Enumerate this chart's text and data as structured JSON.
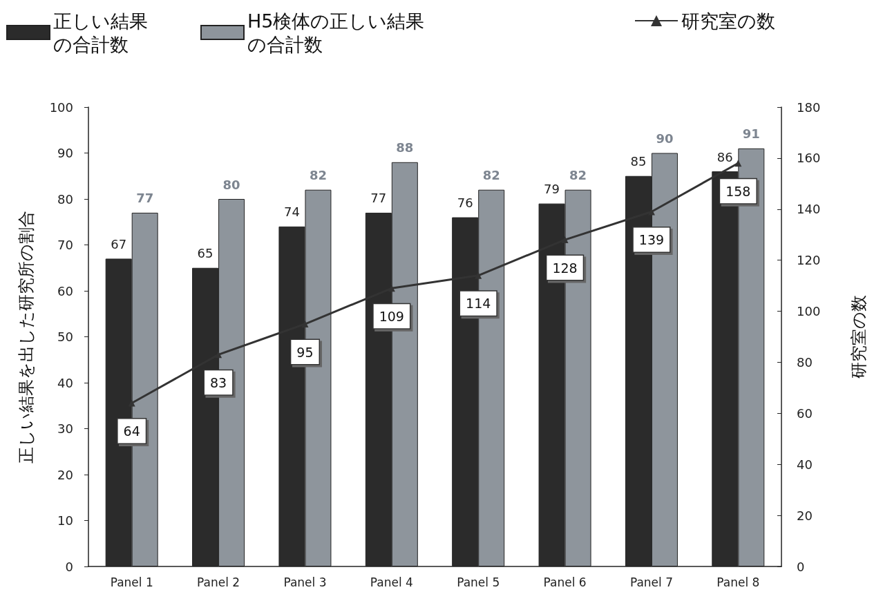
{
  "chart_data": {
    "type": "bar",
    "ylabel": "正しい結果を出した研究所の割合",
    "y2label": "研究室の数",
    "categories": [
      "Panel 1",
      "Panel 2",
      "Panel 3",
      "Panel 4",
      "Panel 5",
      "Panel 6",
      "Panel 7",
      "Panel 8"
    ],
    "series": [
      {
        "name": "正しい結果の合計数",
        "color": "#2b2b2b",
        "values": [
          67,
          65,
          74,
          77,
          76,
          79,
          85,
          86
        ]
      },
      {
        "name": "H5検体の正しい結果の合計数",
        "color": "#8e959c",
        "values": [
          77,
          80,
          82,
          88,
          82,
          82,
          90,
          91
        ]
      },
      {
        "name": "研究室の数",
        "type": "line",
        "axis": "y2",
        "color": "#333333",
        "marker": "triangle",
        "values": [
          64,
          83,
          95,
          109,
          114,
          128,
          139,
          158
        ]
      }
    ],
    "ylim": [
      0,
      100
    ],
    "yticks": [
      0,
      10,
      20,
      30,
      40,
      50,
      60,
      70,
      80,
      90,
      100
    ],
    "y2lim": [
      0,
      180
    ],
    "y2ticks": [
      0,
      20,
      40,
      60,
      80,
      100,
      120,
      140,
      160,
      180
    ],
    "data_labels": true,
    "grid": false,
    "legend": "top"
  }
}
